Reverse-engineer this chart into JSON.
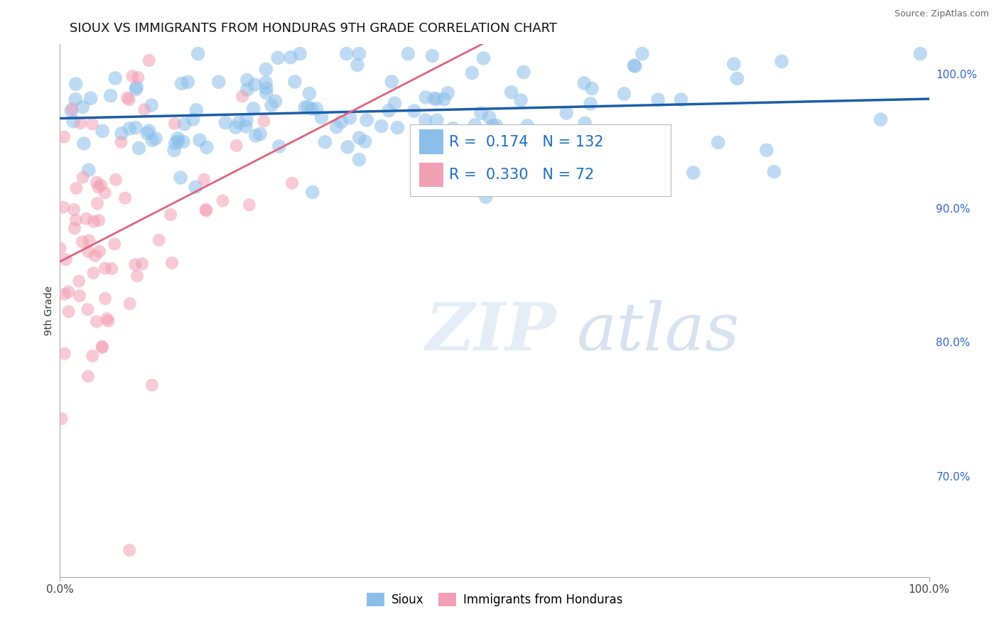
{
  "title": "SIOUX VS IMMIGRANTS FROM HONDURAS 9TH GRADE CORRELATION CHART",
  "source_text": "Source: ZipAtlas.com",
  "ylabel": "9th Grade",
  "xlim": [
    0.0,
    1.0
  ],
  "ylim": [
    0.625,
    1.022
  ],
  "y_ticks_right": [
    0.7,
    0.8,
    0.9,
    1.0
  ],
  "y_tick_labels_right": [
    "70.0%",
    "80.0%",
    "90.0%",
    "100.0%"
  ],
  "blue_color": "#8BBFEA",
  "pink_color": "#F2A0B5",
  "blue_line_color": "#1A5FA8",
  "pink_line_color": "#E0637A",
  "R_blue": 0.174,
  "N_blue": 132,
  "R_pink": 0.33,
  "N_pink": 72,
  "legend_labels": [
    "Sioux",
    "Immigrants from Honduras"
  ],
  "watermark_zip": "ZIP",
  "watermark_atlas": "atlas",
  "background_color": "#FFFFFF",
  "grid_color": "#CCCCCC",
  "title_fontsize": 13,
  "axis_label_fontsize": 10,
  "tick_fontsize": 11,
  "annotation_fontsize": 15,
  "blue_seed": 42,
  "pink_seed": 7
}
